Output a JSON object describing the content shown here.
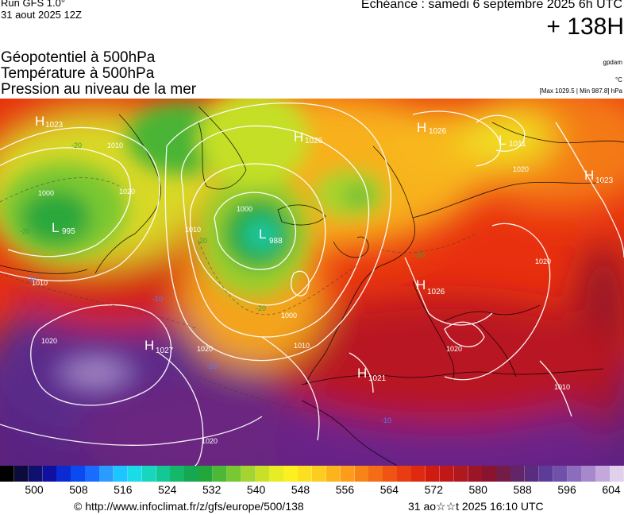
{
  "header": {
    "run_title": "Run GFS 1.0°",
    "run_date": "31 aout 2025 12Z",
    "valid_time": "Echéance : samedi 6 septembre 2025 6h UTC",
    "lead_time": "+ 138H",
    "params": [
      "Géopotentiel à 500hPa",
      "Température à 500hPa",
      "Pression au niveau de la mer"
    ],
    "units_geopotential": "gpdam",
    "units_temperature": "°C",
    "pressure_extremes": "[Max 1029.5 | Min 987.8] hPa"
  },
  "map": {
    "pressure_centers": [
      {
        "type": "H",
        "value": "1023",
        "pos": "north-atlantic-nw"
      },
      {
        "type": "H",
        "value": "1026",
        "pos": "greenland"
      },
      {
        "type": "H",
        "value": "1026",
        "pos": "svalbard"
      },
      {
        "type": "L",
        "value": "1011",
        "pos": "barents-sea"
      },
      {
        "type": "H",
        "value": "1023",
        "pos": "russia-north"
      },
      {
        "type": "L",
        "value": "995",
        "pos": "labrador-sea"
      },
      {
        "type": "L",
        "value": "988",
        "pos": "iceland-south"
      },
      {
        "type": "H",
        "value": "1026",
        "pos": "central-europe"
      },
      {
        "type": "H",
        "value": "1027",
        "pos": "azores"
      },
      {
        "type": "H",
        "value": "1021",
        "pos": "north-africa"
      }
    ],
    "isobar_labels": [
      "1010",
      "1000",
      "1020",
      "1010",
      "1000",
      "1010",
      "1020",
      "1020",
      "1000",
      "1010",
      "1020",
      "1020",
      "1020",
      "1010",
      "1020"
    ],
    "temperature_labels": [
      "-20",
      "-20",
      "-20",
      "-20",
      "-10",
      "-10",
      "-10",
      "-20",
      "-10"
    ]
  },
  "colorbar": {
    "colors": [
      "#000000",
      "#0c0c3c",
      "#10106e",
      "#1010a0",
      "#0a2ad2",
      "#0a4af0",
      "#1a6cff",
      "#2a9cff",
      "#1ec6ff",
      "#1adce8",
      "#16d6be",
      "#14c894",
      "#14b86a",
      "#14a850",
      "#22a83a",
      "#4cb836",
      "#78c832",
      "#a4d42e",
      "#c8e028",
      "#e8ec24",
      "#fcf020",
      "#fce020",
      "#fccc1e",
      "#fcb41c",
      "#fc9c1a",
      "#f88418",
      "#f46c16",
      "#f05414",
      "#e83c12",
      "#e02a10",
      "#d01c10",
      "#c01818",
      "#b01820",
      "#9c1428",
      "#881430",
      "#741c48",
      "#642468",
      "#5a2c80",
      "#5c3c98",
      "#7050aa",
      "#8c6cbc",
      "#a888cc",
      "#c4a8dc",
      "#e0d0ec"
    ],
    "tick_labels": [
      "500",
      "508",
      "516",
      "524",
      "532",
      "540",
      "548",
      "556",
      "564",
      "572",
      "580",
      "588",
      "596",
      "604"
    ]
  },
  "footer": {
    "url": "© http://www.infoclimat.fr/z/gfs/europe/500/138",
    "generated": "31 ao☆☆t 2025 16:10 UTC"
  }
}
